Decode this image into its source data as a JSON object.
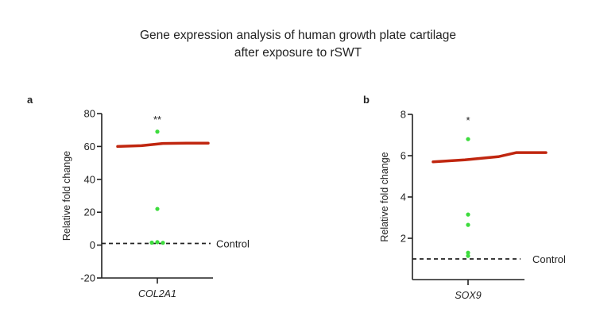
{
  "title": [
    "Gene expression analysis of human growth plate cartilage",
    "after exposure to rSWT"
  ],
  "colors": {
    "points": "#3ddc3d",
    "annotation_line": "#c0260f",
    "axis": "#222222"
  },
  "chart_data": [
    {
      "type": "scatter",
      "panel_label": "a",
      "categories": [
        "COL2A1"
      ],
      "ylabel": "Relative fold change",
      "ylim": [
        -20,
        80
      ],
      "yticks": [
        "-20",
        "0",
        "20",
        "40",
        "60",
        "80"
      ],
      "values": [
        69,
        22,
        1.5,
        1.8,
        1.4
      ],
      "significance": "**",
      "reference_line": {
        "label": "Control",
        "y": 1,
        "style": "dashed"
      },
      "annotation_line_y": [
        60,
        60.5,
        61.8,
        62,
        62
      ]
    },
    {
      "type": "scatter",
      "panel_label": "b",
      "categories": [
        "SOX9"
      ],
      "ylabel": "Relative fold change",
      "ylim": [
        0,
        8
      ],
      "yticks": [
        "2",
        "4",
        "6",
        "8"
      ],
      "values": [
        6.8,
        3.15,
        2.65,
        1.3,
        1.15
      ],
      "significance": "*",
      "reference_line": {
        "label": "Control",
        "y": 1,
        "style": "dashed"
      },
      "annotation_line_y": [
        5.7,
        5.8,
        5.95,
        6.15,
        6.15
      ]
    }
  ]
}
